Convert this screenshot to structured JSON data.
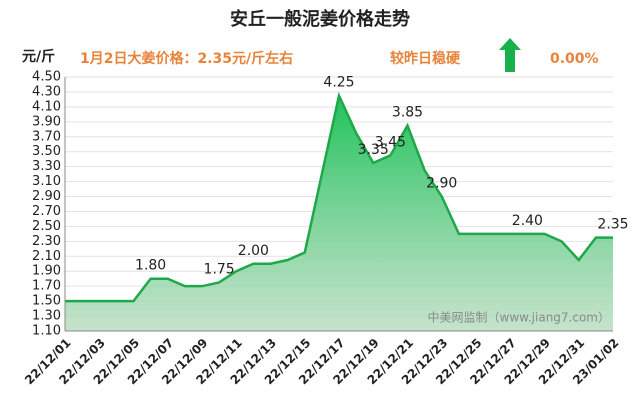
{
  "chart_data": {
    "type": "area",
    "title": "安丘一般泥姜价格走势",
    "y_label": "元/斤",
    "annotations": [
      "1月2日大姜价格：2.35元/斤左右",
      "较昨日稳硬",
      "0.00%",
      "中美网监制（www.jiang7.com）"
    ],
    "categories": [
      "22/12/01",
      null,
      "22/12/03",
      null,
      "22/12/05",
      null,
      "22/12/07",
      null,
      "22/12/09",
      null,
      "22/12/11",
      null,
      "22/12/13",
      null,
      "22/12/15",
      null,
      "22/12/17",
      null,
      "22/12/19",
      null,
      "22/12/21",
      null,
      "22/12/23",
      null,
      "22/12/25",
      null,
      "22/12/27",
      null,
      "22/12/29",
      null,
      "22/12/31",
      null,
      "23/01/02"
    ],
    "values": [
      1.5,
      1.5,
      1.5,
      1.5,
      1.5,
      1.8,
      1.8,
      1.7,
      1.7,
      1.75,
      1.9,
      2.0,
      2.0,
      2.05,
      2.15,
      3.2,
      4.25,
      3.75,
      3.35,
      3.45,
      3.85,
      3.25,
      2.9,
      2.4,
      2.4,
      2.4,
      2.4,
      2.4,
      2.4,
      2.3,
      2.05,
      2.35,
      2.35
    ],
    "value_labels": [
      null,
      null,
      null,
      null,
      null,
      "1.80",
      null,
      null,
      null,
      "1.75",
      null,
      "2.00",
      null,
      null,
      null,
      null,
      "4.25",
      null,
      "3.35",
      "3.45",
      "3.85",
      null,
      "2.90",
      null,
      null,
      null,
      null,
      "2.40",
      null,
      null,
      null,
      null,
      "2.35"
    ],
    "color": "#1fa84a",
    "ylim": [
      1.1,
      4.5
    ],
    "yticks": [
      {
        "value": 1.1,
        "label": "1.10"
      },
      {
        "value": 1.3,
        "label": "1.30"
      },
      {
        "value": 1.5,
        "label": "1.50"
      },
      {
        "value": 1.7,
        "label": "1.70"
      },
      {
        "value": 1.9,
        "label": "1.90"
      },
      {
        "value": 2.1,
        "label": "2.10"
      },
      {
        "value": 2.3,
        "label": "2.30"
      },
      {
        "value": 2.5,
        "label": "2.50"
      },
      {
        "value": 2.7,
        "label": "2.70"
      },
      {
        "value": 2.9,
        "label": "2.90"
      },
      {
        "value": 3.1,
        "label": "3.10"
      },
      {
        "value": 3.3,
        "label": "3.30"
      },
      {
        "value": 3.5,
        "label": "3.50"
      },
      {
        "value": 3.7,
        "label": "3.70"
      },
      {
        "value": 3.9,
        "label": "3.90"
      },
      {
        "value": 4.1,
        "label": "4.10"
      },
      {
        "value": 4.3,
        "label": "4.30"
      },
      {
        "value": 4.5,
        "label": "4.50"
      }
    ],
    "grid": true
  }
}
